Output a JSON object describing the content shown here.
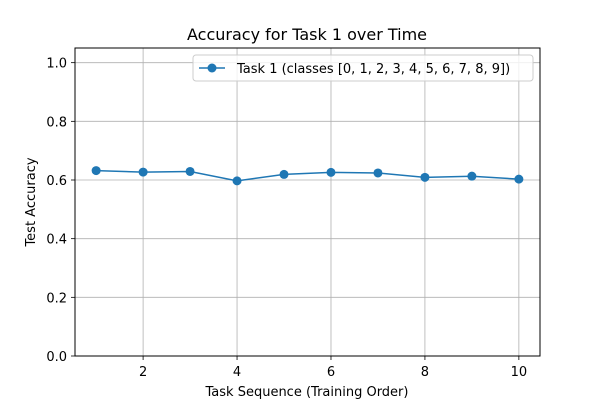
{
  "chart_data": {
    "type": "line",
    "title": "Accuracy for Task 1 over Time",
    "xlabel": "Task Sequence (Training Order)",
    "ylabel": "Test Accuracy",
    "xlim": [
      0.55,
      10.45
    ],
    "ylim": [
      0.0,
      1.05
    ],
    "xticks": [
      2,
      4,
      6,
      8,
      10
    ],
    "xtick_labels": [
      "2",
      "4",
      "6",
      "8",
      "10"
    ],
    "yticks": [
      0.0,
      0.2,
      0.4,
      0.6,
      0.8,
      1.0
    ],
    "ytick_labels": [
      "0.0",
      "0.2",
      "0.4",
      "0.6",
      "0.8",
      "1.0"
    ],
    "grid": true,
    "legend_position": "top-right",
    "series": [
      {
        "name": "Task 1 (classes [0, 1, 2, 3, 4, 5, 6, 7, 8, 9])",
        "color": "#1f77b4",
        "marker": "circle",
        "x": [
          1,
          2,
          3,
          4,
          5,
          6,
          7,
          8,
          9,
          10
        ],
        "y": [
          0.632,
          0.627,
          0.629,
          0.597,
          0.619,
          0.626,
          0.624,
          0.609,
          0.613,
          0.603
        ]
      }
    ]
  }
}
